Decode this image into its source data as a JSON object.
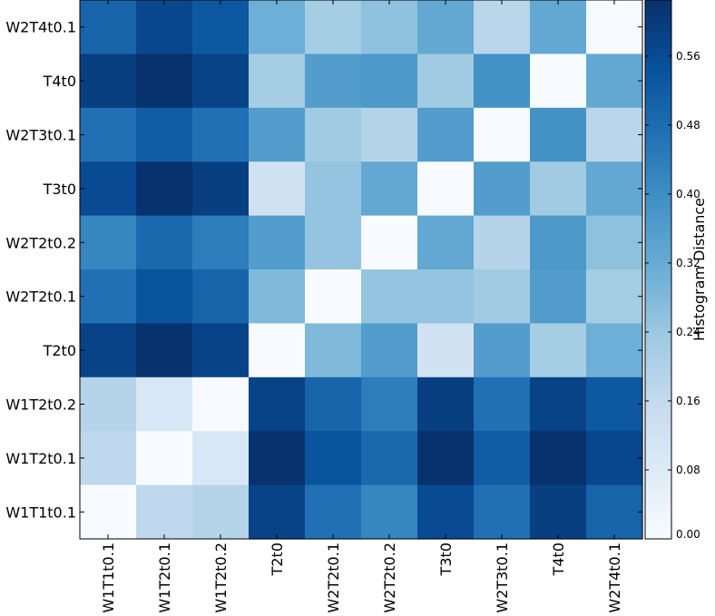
{
  "chart_data": {
    "type": "heatmap",
    "x_categories": [
      "W1T1t0.1",
      "W1T2t0.1",
      "W1T2t0.2",
      "T2t0",
      "W2T2t0.1",
      "W2T2t0.2",
      "T3t0",
      "W2T3t0.1",
      "T4t0",
      "W2T4t0.1"
    ],
    "y_categories_top_to_bottom": [
      "W2T4t0.1",
      "T4t0",
      "W2T3t0.1",
      "T3t0",
      "W2T2t0.2",
      "W2T2t0.1",
      "T2t0",
      "W1T2t0.2",
      "W1T2t0.1",
      "W1T1t0.1"
    ],
    "values_top_to_bottom": [
      [
        0.5,
        0.57,
        0.53,
        0.31,
        0.22,
        0.26,
        0.33,
        0.18,
        0.33,
        0.0
      ],
      [
        0.59,
        0.62,
        0.58,
        0.22,
        0.36,
        0.37,
        0.23,
        0.39,
        0.0,
        0.33
      ],
      [
        0.47,
        0.52,
        0.47,
        0.36,
        0.23,
        0.19,
        0.36,
        0.0,
        0.39,
        0.18
      ],
      [
        0.56,
        0.62,
        0.59,
        0.12,
        0.25,
        0.33,
        0.0,
        0.36,
        0.23,
        0.33
      ],
      [
        0.42,
        0.49,
        0.44,
        0.36,
        0.25,
        0.0,
        0.33,
        0.19,
        0.37,
        0.26
      ],
      [
        0.47,
        0.54,
        0.5,
        0.28,
        0.0,
        0.25,
        0.25,
        0.23,
        0.36,
        0.22
      ],
      [
        0.58,
        0.62,
        0.58,
        0.0,
        0.28,
        0.36,
        0.12,
        0.36,
        0.22,
        0.31
      ],
      [
        0.19,
        0.1,
        0.0,
        0.58,
        0.5,
        0.44,
        0.59,
        0.47,
        0.58,
        0.53
      ],
      [
        0.17,
        0.0,
        0.1,
        0.62,
        0.54,
        0.49,
        0.62,
        0.52,
        0.62,
        0.57
      ],
      [
        0.0,
        0.17,
        0.19,
        0.58,
        0.47,
        0.42,
        0.56,
        0.47,
        0.59,
        0.5
      ]
    ],
    "colorbar": {
      "label": "Histogram Distance",
      "range": [
        0,
        0.625
      ],
      "ticks": [
        "0.00",
        "0.08",
        "0.16",
        "0.24",
        "0.32",
        "0.40",
        "0.48",
        "0.56"
      ],
      "colormap": "Blues"
    },
    "colors": {
      "low": "#f7fbff",
      "high": "#08306b"
    }
  }
}
